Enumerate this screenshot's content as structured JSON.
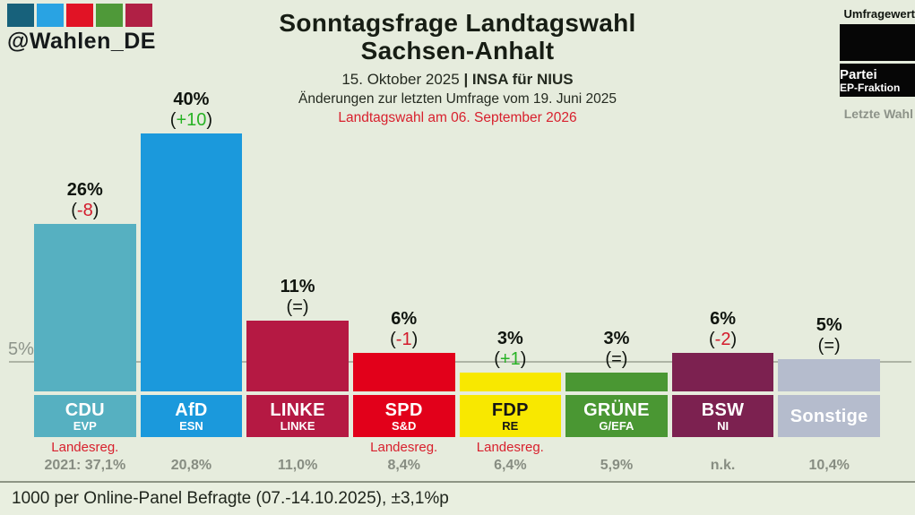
{
  "logo": {
    "handle": "@Wahlen_DE",
    "colors": [
      "#17617b",
      "#29a3e3",
      "#e11325",
      "#4f9939",
      "#b02045"
    ]
  },
  "header": {
    "title_line1": "Sonntagsfrage Landtagswahl",
    "title_line2": "Sachsen-Anhalt",
    "date": "15. Oktober 2025 ",
    "separator": "| ",
    "source": "INSA für NIUS",
    "subtitle2": "Änderungen zur letzten Umfrage vom 19. Juni 2025",
    "subtitle3": "Landtagswahl am 06. September 2026"
  },
  "legend": {
    "top_label": "Umfragewert",
    "box2_line1": "Partei",
    "box2_line2": "EP-Fraktion",
    "bottom_label": "Letzte Wahl"
  },
  "axis": {
    "five_percent_label": "5%"
  },
  "chart_data": {
    "type": "bar",
    "title": "Sonntagsfrage Landtagswahl Sachsen-Anhalt",
    "unit": "percent",
    "ylim": [
      0,
      42
    ],
    "gridline_at": 5,
    "legend_position": "top-right",
    "categories": [
      "CDU",
      "AfD",
      "LINKE",
      "SPD",
      "FDP",
      "GRÜNE",
      "BSW",
      "Sonstige"
    ],
    "values": [
      26,
      40,
      11,
      6,
      3,
      3,
      6,
      5
    ],
    "changes": [
      "-8",
      "+10",
      "=",
      "-1",
      "+1",
      "=",
      "-2",
      "="
    ],
    "parties": [
      {
        "name": "CDU",
        "fraction": "EVP",
        "value": 26,
        "value_label": "26%",
        "change": "-8",
        "change_color": "#d31a2b",
        "color": "#56b0c1",
        "box_text_color": "#ffffff",
        "landesreg": "Landesreg.",
        "last_result": "2021: 37,1%"
      },
      {
        "name": "AfD",
        "fraction": "ESN",
        "value": 40,
        "value_label": "40%",
        "change": "+10",
        "change_color": "#27b224",
        "color": "#1b99dc",
        "box_text_color": "#ffffff",
        "landesreg": "",
        "last_result": "20,8%"
      },
      {
        "name": "LINKE",
        "fraction": "LINKE",
        "value": 11,
        "value_label": "11%",
        "change": "=",
        "change_color": "#10150f",
        "color": "#b51943",
        "box_text_color": "#ffffff",
        "landesreg": "",
        "last_result": "11,0%"
      },
      {
        "name": "SPD",
        "fraction": "S&D",
        "value": 6,
        "value_label": "6%",
        "change": "-1",
        "change_color": "#d31a2b",
        "color": "#e2001a",
        "box_text_color": "#ffffff",
        "landesreg": "Landesreg.",
        "last_result": "8,4%"
      },
      {
        "name": "FDP",
        "fraction": "RE",
        "value": 3,
        "value_label": "3%",
        "change": "+1",
        "change_color": "#27b224",
        "color": "#f8e800",
        "box_text_color": "#161616",
        "landesreg": "Landesreg.",
        "last_result": "6,4%"
      },
      {
        "name": "GRÜNE",
        "fraction": "G/EFA",
        "value": 3,
        "value_label": "3%",
        "change": "=",
        "change_color": "#10150f",
        "color": "#4a9733",
        "box_text_color": "#ffffff",
        "landesreg": "",
        "last_result": "5,9%"
      },
      {
        "name": "BSW",
        "fraction": "NI",
        "value": 6,
        "value_label": "6%",
        "change": "-2",
        "change_color": "#d31a2b",
        "color": "#7c2150",
        "box_text_color": "#ffffff",
        "landesreg": "",
        "last_result": "n.k."
      },
      {
        "name": "Sonstige",
        "fraction": "",
        "value": 5,
        "value_label": "5%",
        "change": "=",
        "change_color": "#10150f",
        "color": "#b5bccd",
        "box_text_color": "#ffffff",
        "landesreg": "",
        "last_result": "10,4%"
      }
    ]
  },
  "footer": {
    "text": "1000 per Online-Panel Befragte (07.-14.10.2025), ±3,1%p"
  }
}
